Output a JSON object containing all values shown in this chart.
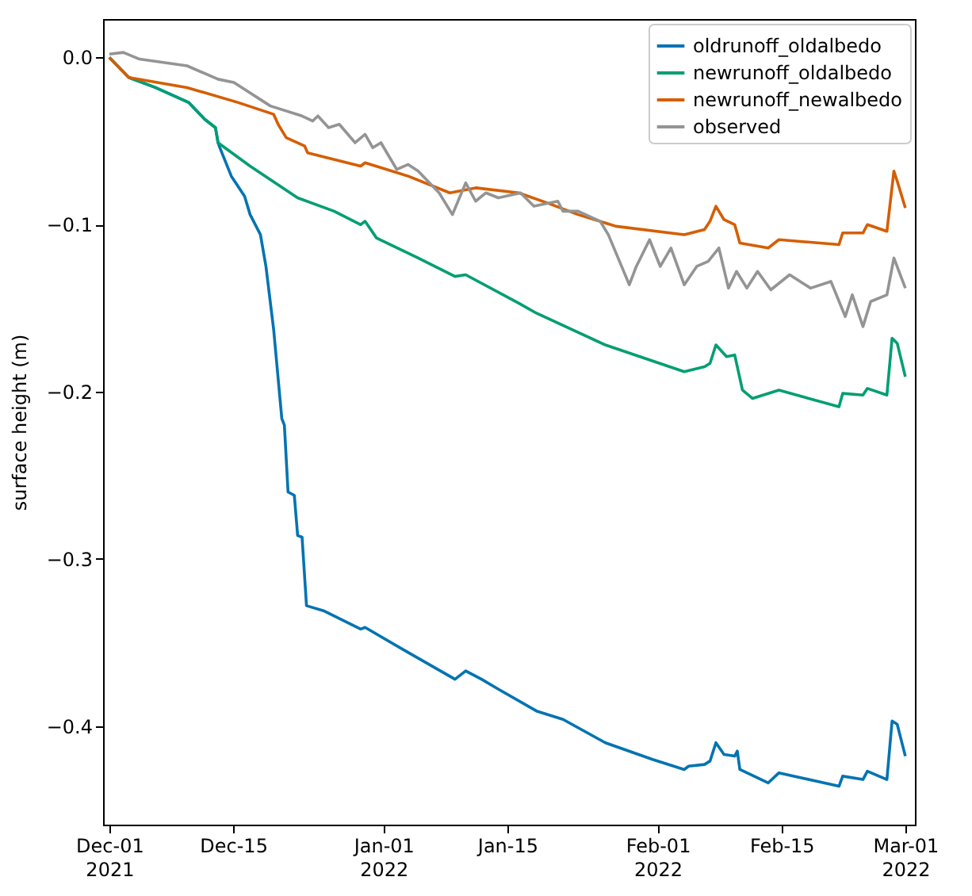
{
  "chart_data": {
    "type": "line",
    "ylabel": "surface height (m)",
    "xlim": [
      "2021-11-30T07:00",
      "2022-03-02T02:00"
    ],
    "xticks": [
      {
        "value": "2021-12-01",
        "label": "Dec-01\n2021"
      },
      {
        "value": "2021-12-15",
        "label": "Dec-15"
      },
      {
        "value": "2022-01-01",
        "label": "Jan-01\n2022"
      },
      {
        "value": "2022-01-15",
        "label": "Jan-15"
      },
      {
        "value": "2022-02-01",
        "label": "Feb-01\n2022"
      },
      {
        "value": "2022-02-15",
        "label": "Feb-15"
      },
      {
        "value": "2022-03-01",
        "label": "Mar-01\n2022"
      }
    ],
    "ylim": [
      -0.459,
      0.023
    ],
    "yticks": [
      {
        "value": 0,
        "label": "0.0"
      },
      {
        "value": -0.1,
        "label": "−0.1"
      },
      {
        "value": -0.2,
        "label": "−0.2"
      },
      {
        "value": -0.3,
        "label": "−0.3"
      },
      {
        "value": -0.4,
        "label": "−0.4"
      }
    ],
    "grid": false,
    "legend": "top right",
    "marker": "none",
    "line_style": "solid",
    "series": [
      {
        "name": "oldrunoff_oldalbedo",
        "color": "#0173b2",
        "x": [
          "2021-12-01T00:00",
          "2021-12-03T05:00",
          "2021-12-06T05:00",
          "2021-12-10T00:00",
          "2021-12-11T19:00",
          "2021-12-13T00:00",
          "2021-12-13T07:00",
          "2021-12-13T12:00",
          "2021-12-14T19:00",
          "2021-12-16T07:00",
          "2021-12-16T22:00",
          "2021-12-18T02:00",
          "2021-12-18T17:00",
          "2021-12-19T14:00",
          "2021-12-20T12:00",
          "2021-12-20T19:00",
          "2021-12-21T05:00",
          "2021-12-21T22:00",
          "2021-12-22T07:00",
          "2021-12-22T19:00",
          "2021-12-23T07:00",
          "2021-12-25T05:00",
          "2021-12-29T10:00",
          "2021-12-29T22:00",
          "2022-01-03T19:00",
          "2022-01-09T02:00",
          "2022-01-10T07:00",
          "2022-01-12T02:00",
          "2022-01-14T00:00",
          "2022-01-18T07:00",
          "2022-01-21T07:00",
          "2022-01-26T02:00",
          "2022-01-31T10:00",
          "2022-02-04T00:00",
          "2022-02-04T12:00",
          "2022-02-06T07:00",
          "2022-02-06T22:00",
          "2022-02-07T14:00",
          "2022-02-08T12:00",
          "2022-02-09T17:00",
          "2022-02-10T00:00",
          "2022-02-10T07:00",
          "2022-02-13T12:00",
          "2022-02-14T17:00",
          "2022-02-21T12:00",
          "2022-02-21T22:00",
          "2022-02-24T05:00",
          "2022-02-24T17:00",
          "2022-02-26T22:00",
          "2022-02-27T12:00",
          "2022-02-28T02:00",
          "2022-03-01T00:00"
        ],
        "values": [
          0.0,
          -0.012,
          -0.018,
          -0.027,
          -0.037,
          -0.042,
          -0.051,
          -0.054,
          -0.071,
          -0.083,
          -0.094,
          -0.106,
          -0.125,
          -0.163,
          -0.216,
          -0.22,
          -0.26,
          -0.262,
          -0.286,
          -0.287,
          -0.328,
          -0.331,
          -0.342,
          -0.341,
          -0.356,
          -0.372,
          -0.367,
          -0.372,
          -0.378,
          -0.391,
          -0.396,
          -0.41,
          -0.42,
          -0.426,
          -0.424,
          -0.423,
          -0.421,
          -0.41,
          -0.417,
          -0.418,
          -0.415,
          -0.426,
          -0.434,
          -0.428,
          -0.436,
          -0.43,
          -0.432,
          -0.427,
          -0.432,
          -0.397,
          -0.399,
          -0.418
        ]
      },
      {
        "name": "newrunoff_oldalbedo",
        "color": "#029e73",
        "x": [
          "2021-12-01T00:00",
          "2021-12-03T05:00",
          "2021-12-06T05:00",
          "2021-12-10T00:00",
          "2021-12-11T19:00",
          "2021-12-13T00:00",
          "2021-12-13T07:00",
          "2021-12-16T22:00",
          "2021-12-22T07:00",
          "2021-12-26T10:00",
          "2021-12-29T10:00",
          "2021-12-29T22:00",
          "2021-12-31T05:00",
          "2022-01-04T22:00",
          "2022-01-09T02:00",
          "2022-01-10T07:00",
          "2022-01-16T07:00",
          "2022-01-18T07:00",
          "2022-01-26T02:00",
          "2022-02-04T00:00",
          "2022-02-06T07:00",
          "2022-02-06T22:00",
          "2022-02-07T14:00",
          "2022-02-08T19:00",
          "2022-02-09T17:00",
          "2022-02-10T14:00",
          "2022-02-11T17:00",
          "2022-02-14T17:00",
          "2022-02-21T12:00",
          "2022-02-21T22:00",
          "2022-02-24T05:00",
          "2022-02-24T17:00",
          "2022-02-26T22:00",
          "2022-02-27T12:00",
          "2022-02-28T02:00",
          "2022-03-01T00:00"
        ],
        "values": [
          0.0,
          -0.012,
          -0.018,
          -0.027,
          -0.037,
          -0.042,
          -0.051,
          -0.065,
          -0.084,
          -0.092,
          -0.1,
          -0.098,
          -0.108,
          -0.12,
          -0.131,
          -0.13,
          -0.147,
          -0.153,
          -0.172,
          -0.188,
          -0.185,
          -0.183,
          -0.172,
          -0.179,
          -0.178,
          -0.199,
          -0.204,
          -0.199,
          -0.209,
          -0.201,
          -0.202,
          -0.198,
          -0.202,
          -0.168,
          -0.171,
          -0.191
        ]
      },
      {
        "name": "newrunoff_newalbedo",
        "color": "#d55e00",
        "x": [
          "2021-12-01T00:00",
          "2021-12-03T05:00",
          "2021-12-09T19:00",
          "2021-12-15T14:00",
          "2021-12-19T14:00",
          "2021-12-20T02:00",
          "2021-12-21T00:00",
          "2021-12-23T02:00",
          "2021-12-23T10:00",
          "2021-12-29T10:00",
          "2021-12-29T22:00",
          "2022-01-03T19:00",
          "2022-01-08T12:00",
          "2022-01-11T10:00",
          "2022-01-16T07:00",
          "2022-01-19T12:00",
          "2022-01-23T00:00",
          "2022-01-27T07:00",
          "2022-02-04T00:00",
          "2022-02-06T07:00",
          "2022-02-06T22:00",
          "2022-02-07T14:00",
          "2022-02-08T12:00",
          "2022-02-09T17:00",
          "2022-02-10T07:00",
          "2022-02-13T12:00",
          "2022-02-14T17:00",
          "2022-02-21T12:00",
          "2022-02-21T22:00",
          "2022-02-24T05:00",
          "2022-02-24T17:00",
          "2022-02-26T22:00",
          "2022-02-27T17:00",
          "2022-02-28T02:00",
          "2022-03-01T00:00"
        ],
        "values": [
          0.0,
          -0.012,
          -0.018,
          -0.027,
          -0.034,
          -0.04,
          -0.048,
          -0.053,
          -0.057,
          -0.065,
          -0.063,
          -0.071,
          -0.081,
          -0.078,
          -0.081,
          -0.087,
          -0.094,
          -0.101,
          -0.106,
          -0.103,
          -0.098,
          -0.089,
          -0.097,
          -0.1,
          -0.111,
          -0.114,
          -0.109,
          -0.112,
          -0.105,
          -0.105,
          -0.1,
          -0.104,
          -0.068,
          -0.074,
          -0.09
        ]
      },
      {
        "name": "observed",
        "color": "#949494",
        "x": [
          "2021-12-01T00:00",
          "2021-12-02T14:00",
          "2021-12-04T10:00",
          "2021-12-09T19:00",
          "2021-12-13T07:00",
          "2021-12-15T02:00",
          "2021-12-19T05:00",
          "2021-12-22T19:00",
          "2021-12-24T00:00",
          "2021-12-24T14:00",
          "2021-12-25T19:00",
          "2021-12-27T00:00",
          "2021-12-28T19:00",
          "2021-12-29T22:00",
          "2021-12-30T19:00",
          "2021-12-31T17:00",
          "2022-01-02T12:00",
          "2022-01-03T19:00",
          "2022-01-04T22:00",
          "2022-01-07T07:00",
          "2022-01-08T19:00",
          "2022-01-10T07:00",
          "2022-01-11T10:00",
          "2022-01-12T14:00",
          "2022-01-14T00:00",
          "2022-01-16T12:00",
          "2022-01-18T00:00",
          "2022-01-20T17:00",
          "2022-01-21T07:00",
          "2022-01-23T00:00",
          "2022-01-25T12:00",
          "2022-01-26T10:00",
          "2022-01-28T19:00",
          "2022-01-29T14:00",
          "2022-01-31T02:00",
          "2022-02-01T07:00",
          "2022-02-02T12:00",
          "2022-02-04T00:00",
          "2022-02-05T10:00",
          "2022-02-06T17:00",
          "2022-02-07T22:00",
          "2022-02-09T00:00",
          "2022-02-09T22:00",
          "2022-02-11T02:00",
          "2022-02-12T07:00",
          "2022-02-13T19:00",
          "2022-02-15T22:00",
          "2022-02-18T07:00",
          "2022-02-20T14:00",
          "2022-02-22T05:00",
          "2022-02-23T00:00",
          "2022-02-24T05:00",
          "2022-02-25T02:00",
          "2022-02-26T22:00",
          "2022-02-27T17:00",
          "2022-03-01T00:00"
        ],
        "values": [
          0.002,
          0.003,
          -0.001,
          -0.005,
          -0.013,
          -0.015,
          -0.029,
          -0.035,
          -0.038,
          -0.035,
          -0.042,
          -0.04,
          -0.051,
          -0.046,
          -0.054,
          -0.051,
          -0.067,
          -0.064,
          -0.068,
          -0.081,
          -0.094,
          -0.075,
          -0.086,
          -0.081,
          -0.084,
          -0.081,
          -0.089,
          -0.086,
          -0.092,
          -0.092,
          -0.098,
          -0.106,
          -0.136,
          -0.125,
          -0.109,
          -0.125,
          -0.114,
          -0.136,
          -0.125,
          -0.122,
          -0.114,
          -0.138,
          -0.128,
          -0.138,
          -0.128,
          -0.139,
          -0.13,
          -0.138,
          -0.134,
          -0.155,
          -0.142,
          -0.161,
          -0.146,
          -0.142,
          -0.12,
          -0.138
        ]
      }
    ]
  }
}
